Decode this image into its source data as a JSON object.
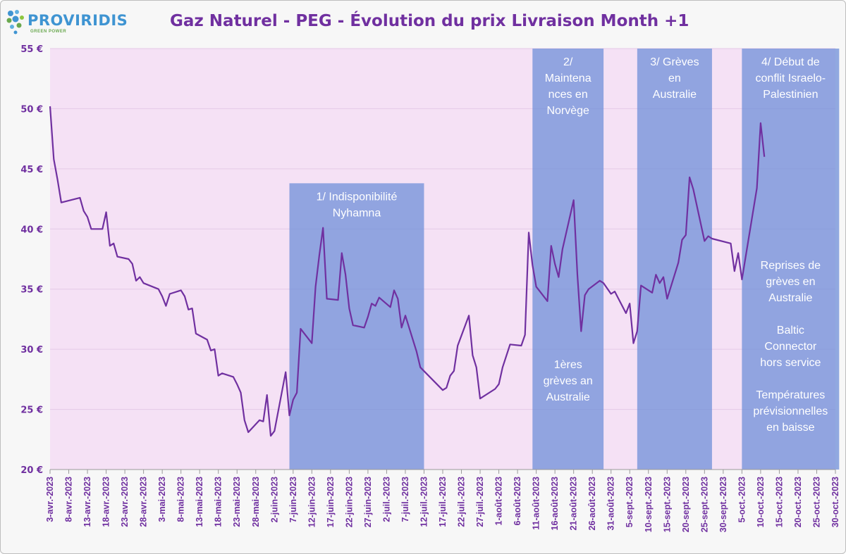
{
  "header": {
    "logo_text": "PROVIRIDIS",
    "logo_tagline": "GREEN POWER",
    "title": "Gaz Naturel - PEG - Évolution du prix Livraison Month +1"
  },
  "colors": {
    "line": "#7030a0",
    "plot_background": "#f5e1f5",
    "band_fill": "#6f8fd8",
    "axis_text": "#7030a0",
    "annotation_text": "#ffffff"
  },
  "chart_data": {
    "type": "line",
    "title": "Gaz Naturel - PEG - Évolution du prix Livraison Month +1",
    "xlabel": "",
    "ylabel": "",
    "x_start": "2023-04-03",
    "x_end": "2023-10-30",
    "ylim": [
      20,
      55
    ],
    "y_ticks": [
      20,
      25,
      30,
      35,
      40,
      45,
      50,
      55
    ],
    "y_tick_labels": [
      "20 €",
      "25 €",
      "30 €",
      "35 €",
      "40 €",
      "45 €",
      "50 €",
      "55 €"
    ],
    "x_ticks": [
      "2023-04-03",
      "2023-04-08",
      "2023-04-13",
      "2023-04-18",
      "2023-04-23",
      "2023-04-28",
      "2023-05-03",
      "2023-05-08",
      "2023-05-13",
      "2023-05-18",
      "2023-05-23",
      "2023-05-28",
      "2023-06-02",
      "2023-06-07",
      "2023-06-12",
      "2023-06-17",
      "2023-06-22",
      "2023-06-27",
      "2023-07-02",
      "2023-07-07",
      "2023-07-12",
      "2023-07-17",
      "2023-07-22",
      "2023-07-27",
      "2023-08-01",
      "2023-08-06",
      "2023-08-11",
      "2023-08-16",
      "2023-08-21",
      "2023-08-26",
      "2023-08-31",
      "2023-09-05",
      "2023-09-10",
      "2023-09-15",
      "2023-09-20",
      "2023-09-25",
      "2023-09-30",
      "2023-10-05",
      "2023-10-10",
      "2023-10-15",
      "2023-10-20",
      "2023-10-25",
      "2023-10-30"
    ],
    "x_tick_labels": [
      "3-avr.-2023",
      "8-avr.-2023",
      "13-avr.-2023",
      "18-avr.-2023",
      "23-avr.-2023",
      "28-avr.-2023",
      "3-mai-2023",
      "8-mai-2023",
      "13-mai-2023",
      "18-mai-2023",
      "23-mai-2023",
      "28-mai-2023",
      "2-juin-2023",
      "7-juin-2023",
      "12-juin-2023",
      "17-juin-2023",
      "22-juin-2023",
      "27-juin-2023",
      "2-juil.-2023",
      "7-juil.-2023",
      "12-juil.-2023",
      "17-juil.-2023",
      "22-juil.-2023",
      "27-juil.-2023",
      "1-août-2023",
      "6-août-2023",
      "11-août-2023",
      "16-août-2023",
      "21-août-2023",
      "26-août-2023",
      "31-août-2023",
      "5-sept.-2023",
      "10-sept.-2023",
      "15-sept.-2023",
      "20-sept.-2023",
      "25-sept.-2023",
      "30-sept.-2023",
      "5-oct.-2023",
      "10-oct.-2023",
      "15-oct.-2023",
      "20-oct.-2023",
      "25-oct.-2023",
      "30-oct.-2023"
    ],
    "grid": "horizontal",
    "series": [
      {
        "x": [
          "2023-04-03",
          "2023-04-04",
          "2023-04-05",
          "2023-04-06",
          "2023-04-11",
          "2023-04-12",
          "2023-04-13",
          "2023-04-14",
          "2023-04-17",
          "2023-04-18",
          "2023-04-19",
          "2023-04-20",
          "2023-04-21",
          "2023-04-24",
          "2023-04-25",
          "2023-04-26",
          "2023-04-27",
          "2023-04-28",
          "2023-05-02",
          "2023-05-03",
          "2023-05-04",
          "2023-05-05",
          "2023-05-08",
          "2023-05-09",
          "2023-05-10",
          "2023-05-11",
          "2023-05-12",
          "2023-05-15",
          "2023-05-16",
          "2023-05-17",
          "2023-05-18",
          "2023-05-19",
          "2023-05-22",
          "2023-05-23",
          "2023-05-24",
          "2023-05-25",
          "2023-05-26",
          "2023-05-29",
          "2023-05-30",
          "2023-05-31",
          "2023-06-01",
          "2023-06-02",
          "2023-06-05",
          "2023-06-06",
          "2023-06-07",
          "2023-06-08",
          "2023-06-09",
          "2023-06-12",
          "2023-06-13",
          "2023-06-14",
          "2023-06-15",
          "2023-06-16",
          "2023-06-19",
          "2023-06-20",
          "2023-06-21",
          "2023-06-22",
          "2023-06-23",
          "2023-06-26",
          "2023-06-27",
          "2023-06-28",
          "2023-06-29",
          "2023-06-30",
          "2023-07-03",
          "2023-07-04",
          "2023-07-05",
          "2023-07-06",
          "2023-07-07",
          "2023-07-10",
          "2023-07-11",
          "2023-07-17",
          "2023-07-18",
          "2023-07-19",
          "2023-07-20",
          "2023-07-21",
          "2023-07-24",
          "2023-07-25",
          "2023-07-26",
          "2023-07-27",
          "2023-07-31",
          "2023-08-01",
          "2023-08-02",
          "2023-08-04",
          "2023-08-07",
          "2023-08-08",
          "2023-08-09",
          "2023-08-10",
          "2023-08-11",
          "2023-08-14",
          "2023-08-15",
          "2023-08-16",
          "2023-08-17",
          "2023-08-18",
          "2023-08-21",
          "2023-08-22",
          "2023-08-23",
          "2023-08-24",
          "2023-08-25",
          "2023-08-28",
          "2023-08-29",
          "2023-08-31",
          "2023-09-01",
          "2023-09-04",
          "2023-09-05",
          "2023-09-06",
          "2023-09-07",
          "2023-09-08",
          "2023-09-11",
          "2023-09-12",
          "2023-09-13",
          "2023-09-14",
          "2023-09-15",
          "2023-09-18",
          "2023-09-19",
          "2023-09-20",
          "2023-09-21",
          "2023-09-22",
          "2023-09-25",
          "2023-09-26",
          "2023-09-27",
          "2023-10-02",
          "2023-10-03",
          "2023-10-04",
          "2023-10-05",
          "2023-10-09",
          "2023-10-10",
          "2023-10-11"
        ],
        "values": [
          50.2,
          45.8,
          44.1,
          42.2,
          42.6,
          41.5,
          41.0,
          40.0,
          40.0,
          41.4,
          38.6,
          38.8,
          37.7,
          37.5,
          37.1,
          35.7,
          36.0,
          35.5,
          35.0,
          34.4,
          33.6,
          34.6,
          34.9,
          34.4,
          33.3,
          33.4,
          31.3,
          30.8,
          29.9,
          30.0,
          27.8,
          28.0,
          27.7,
          27.1,
          26.4,
          24.1,
          23.1,
          24.1,
          24.0,
          26.2,
          22.8,
          23.2,
          28.1,
          24.5,
          25.8,
          26.4,
          31.7,
          30.5,
          35.2,
          37.8,
          40.1,
          34.2,
          34.1,
          38.0,
          36.2,
          33.4,
          32.0,
          31.8,
          32.7,
          33.8,
          33.6,
          34.3,
          33.5,
          34.9,
          34.2,
          31.8,
          32.8,
          29.8,
          28.5,
          26.6,
          26.8,
          27.8,
          28.2,
          30.3,
          32.8,
          29.5,
          28.5,
          25.9,
          26.7,
          27.1,
          28.5,
          30.4,
          30.3,
          31.2,
          39.7,
          37.0,
          35.2,
          34.0,
          38.6,
          37.1,
          36.0,
          38.3,
          42.4,
          36.2,
          31.5,
          34.5,
          35.0,
          35.7,
          35.5,
          34.6,
          34.8,
          33.0,
          33.8,
          30.5,
          31.5,
          35.3,
          34.7,
          36.2,
          35.5,
          36.0,
          34.2,
          37.2,
          39.1,
          39.5,
          44.3,
          43.3,
          39.0,
          39.4,
          39.2,
          38.8,
          36.5,
          38.0,
          35.8,
          43.4,
          48.8,
          46.0
        ]
      }
    ],
    "bands": [
      {
        "start": "2023-06-06",
        "end": "2023-07-12",
        "top": 43.8,
        "label_top": [
          "1/ Indisponibilité",
          "Nyhamna"
        ],
        "label_bottom": []
      },
      {
        "start": "2023-08-10",
        "end": "2023-08-29",
        "top": 55,
        "label_top": [
          "2/",
          "Maintena",
          "nces en",
          "Norvège"
        ],
        "label_bottom": [
          "1ères",
          "grèves an",
          "Australie"
        ]
      },
      {
        "start": "2023-09-07",
        "end": "2023-09-27",
        "top": 55,
        "label_top": [
          "3/ Grèves",
          "en",
          "Australie"
        ],
        "label_bottom": []
      },
      {
        "start": "2023-10-05",
        "end": "2023-10-31",
        "top": 55,
        "label_top": [
          "4/ Début de",
          "conflit Israelo-",
          "Palestinien"
        ],
        "label_bottom": [
          "Reprises de",
          "grèves en",
          "Australie",
          "",
          "Baltic",
          "Connector",
          "hors service",
          "",
          "Températures",
          "prévisionnelles",
          "en baisse"
        ]
      }
    ]
  }
}
